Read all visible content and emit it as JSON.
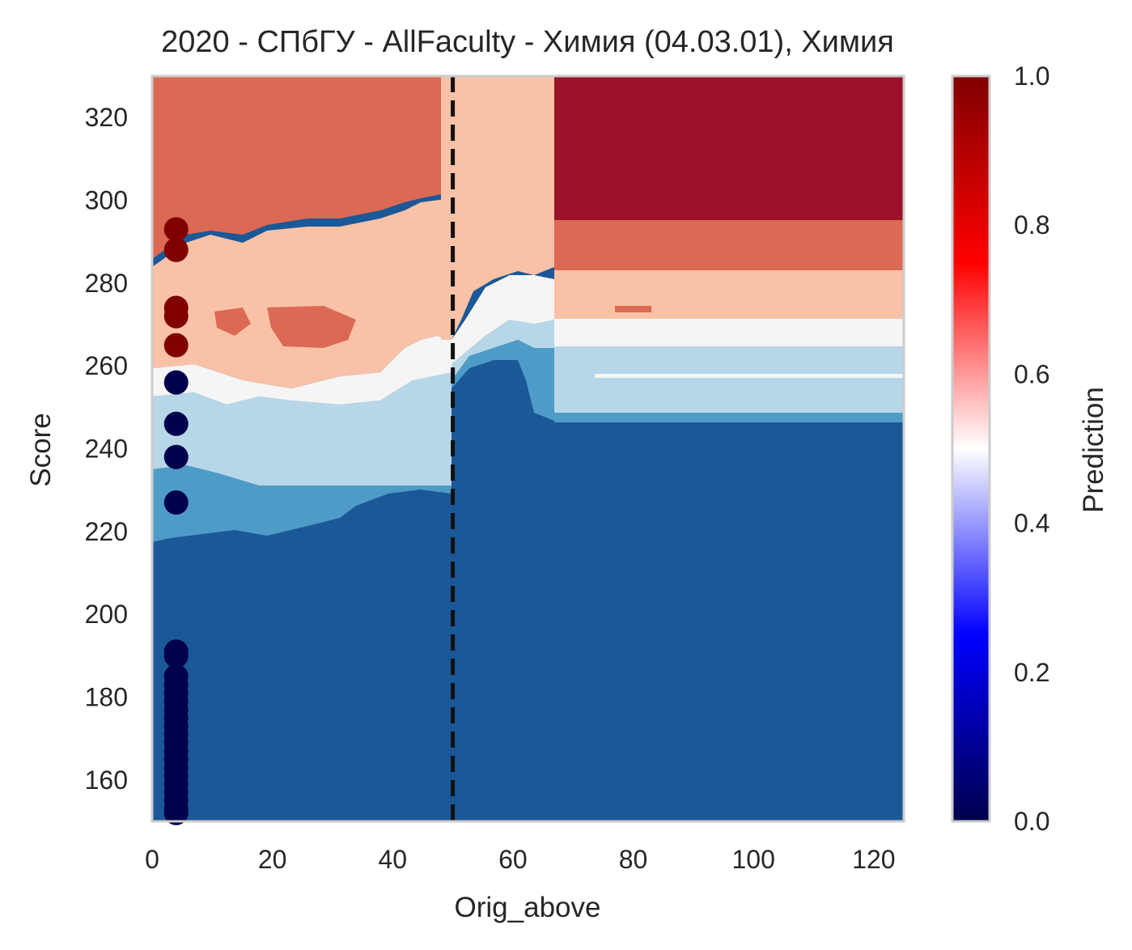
{
  "chart_data": {
    "type": "heatmap",
    "subtype": "filled-contour with scatter overlay",
    "title": "2020 - СПбГУ - AllFaculty - Химия (04.03.01), Химия",
    "xlabel": "Orig_above",
    "ylabel": "Score",
    "xlim": [
      0,
      125
    ],
    "ylim": [
      150,
      330
    ],
    "xticks": [
      0,
      20,
      40,
      60,
      80,
      100,
      120
    ],
    "yticks": [
      160,
      180,
      200,
      220,
      240,
      260,
      280,
      300,
      320
    ],
    "grid": false,
    "reference_line": {
      "x": 50,
      "style": "dashed",
      "color": "#111111"
    },
    "contour_levels": [
      {
        "range": [
          0.0,
          0.2
        ],
        "color": "#1b5897"
      },
      {
        "range": [
          0.2,
          0.3
        ],
        "color": "#4f9bc7"
      },
      {
        "range": [
          0.3,
          0.45
        ],
        "color": "#b7d7e8"
      },
      {
        "range": [
          0.45,
          0.55
        ],
        "color": "#f5f5f5"
      },
      {
        "range": [
          0.55,
          0.7
        ],
        "color": "#f9c2a7"
      },
      {
        "range": [
          0.7,
          0.85
        ],
        "color": "#dc6953"
      },
      {
        "range": [
          0.85,
          1.0
        ],
        "color": "#9c1229"
      }
    ],
    "scatter_points": [
      {
        "x": 4,
        "y": 293,
        "value": 1
      },
      {
        "x": 4,
        "y": 288,
        "value": 1
      },
      {
        "x": 4,
        "y": 274,
        "value": 1
      },
      {
        "x": 4,
        "y": 272,
        "value": 1
      },
      {
        "x": 4,
        "y": 265,
        "value": 1
      },
      {
        "x": 4,
        "y": 256,
        "value": 0
      },
      {
        "x": 4,
        "y": 246,
        "value": 0
      },
      {
        "x": 4,
        "y": 238,
        "value": 0
      },
      {
        "x": 4,
        "y": 227,
        "value": 0
      },
      {
        "x": 4,
        "y": 191,
        "value": 0
      },
      {
        "x": 4,
        "y": 190,
        "value": 0
      },
      {
        "x": 4,
        "y": 185,
        "value": 0
      },
      {
        "x": 4,
        "y": 183,
        "value": 0
      },
      {
        "x": 4,
        "y": 181,
        "value": 0
      },
      {
        "x": 4,
        "y": 179,
        "value": 0
      },
      {
        "x": 4,
        "y": 177,
        "value": 0
      },
      {
        "x": 4,
        "y": 175,
        "value": 0
      },
      {
        "x": 4,
        "y": 173,
        "value": 0
      },
      {
        "x": 4,
        "y": 171,
        "value": 0
      },
      {
        "x": 4,
        "y": 169,
        "value": 0
      },
      {
        "x": 4,
        "y": 167,
        "value": 0
      },
      {
        "x": 4,
        "y": 165,
        "value": 0
      },
      {
        "x": 4,
        "y": 163,
        "value": 0
      },
      {
        "x": 4,
        "y": 161,
        "value": 0
      },
      {
        "x": 4,
        "y": 159,
        "value": 0
      },
      {
        "x": 4,
        "y": 157,
        "value": 0
      },
      {
        "x": 4,
        "y": 155,
        "value": 0
      },
      {
        "x": 4,
        "y": 153,
        "value": 0
      },
      {
        "x": 4,
        "y": 152,
        "value": 0
      }
    ],
    "colorbar": {
      "label": "Prediction",
      "range": [
        0.0,
        1.0
      ],
      "ticks": [
        "0.0",
        "0.2",
        "0.4",
        "0.6",
        "0.8",
        "1.0"
      ],
      "colormap": "seismic",
      "colors": [
        "#00004c",
        "#0000ff",
        "#ffffff",
        "#ff0000",
        "#800000"
      ]
    }
  }
}
